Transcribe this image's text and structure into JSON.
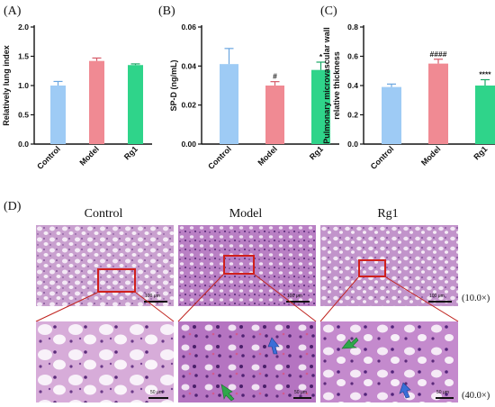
{
  "panels": {
    "a": "(A)",
    "b": "(B)",
    "c": "(C)",
    "d": "(D)"
  },
  "colors": {
    "control": "#9ecbf5",
    "model": "#f08a93",
    "rg1": "#2fd48a",
    "box": "#d0201c"
  },
  "chart_data": [
    {
      "type": "bar",
      "panel": "A",
      "categories": [
        "Control",
        "Model",
        "Rg1"
      ],
      "values": [
        1.0,
        1.42,
        1.35
      ],
      "errors": [
        0.07,
        0.05,
        0.02
      ],
      "annotations": [
        "",
        "",
        ""
      ],
      "ylabel": "Relatively lung index",
      "ylim": [
        0,
        2.0
      ],
      "yticks": [
        "0.0",
        "0.5",
        "1.0",
        "1.5",
        "2.0"
      ]
    },
    {
      "type": "bar",
      "panel": "B",
      "categories": [
        "Control",
        "Model",
        "Rg1"
      ],
      "values": [
        0.041,
        0.03,
        0.038
      ],
      "errors": [
        0.008,
        0.002,
        0.004
      ],
      "annotations": [
        "",
        "#",
        "*"
      ],
      "ylabel": "SP-D (ng/mL)",
      "ylim": [
        0,
        0.06
      ],
      "yticks": [
        "0.00",
        "0.02",
        "0.04",
        "0.06"
      ]
    },
    {
      "type": "bar",
      "panel": "C",
      "categories": [
        "Control",
        "Model",
        "Rg1"
      ],
      "values": [
        0.39,
        0.55,
        0.4
      ],
      "errors": [
        0.02,
        0.03,
        0.04
      ],
      "annotations": [
        "",
        "####",
        "****"
      ],
      "ylabel_line1": "Pulmonary microvascular wall",
      "ylabel_line2": "relative thickness",
      "ylim": [
        0,
        0.8
      ],
      "yticks": [
        "0.0",
        "0.2",
        "0.4",
        "0.6",
        "0.8"
      ]
    }
  ],
  "histology": {
    "columns": [
      "Control",
      "Model",
      "Rg1"
    ],
    "magnification_low": "(10.0×)",
    "magnification_high": "(40.0×)",
    "scale_low": "100 μm",
    "scale_high": "50 μm"
  }
}
